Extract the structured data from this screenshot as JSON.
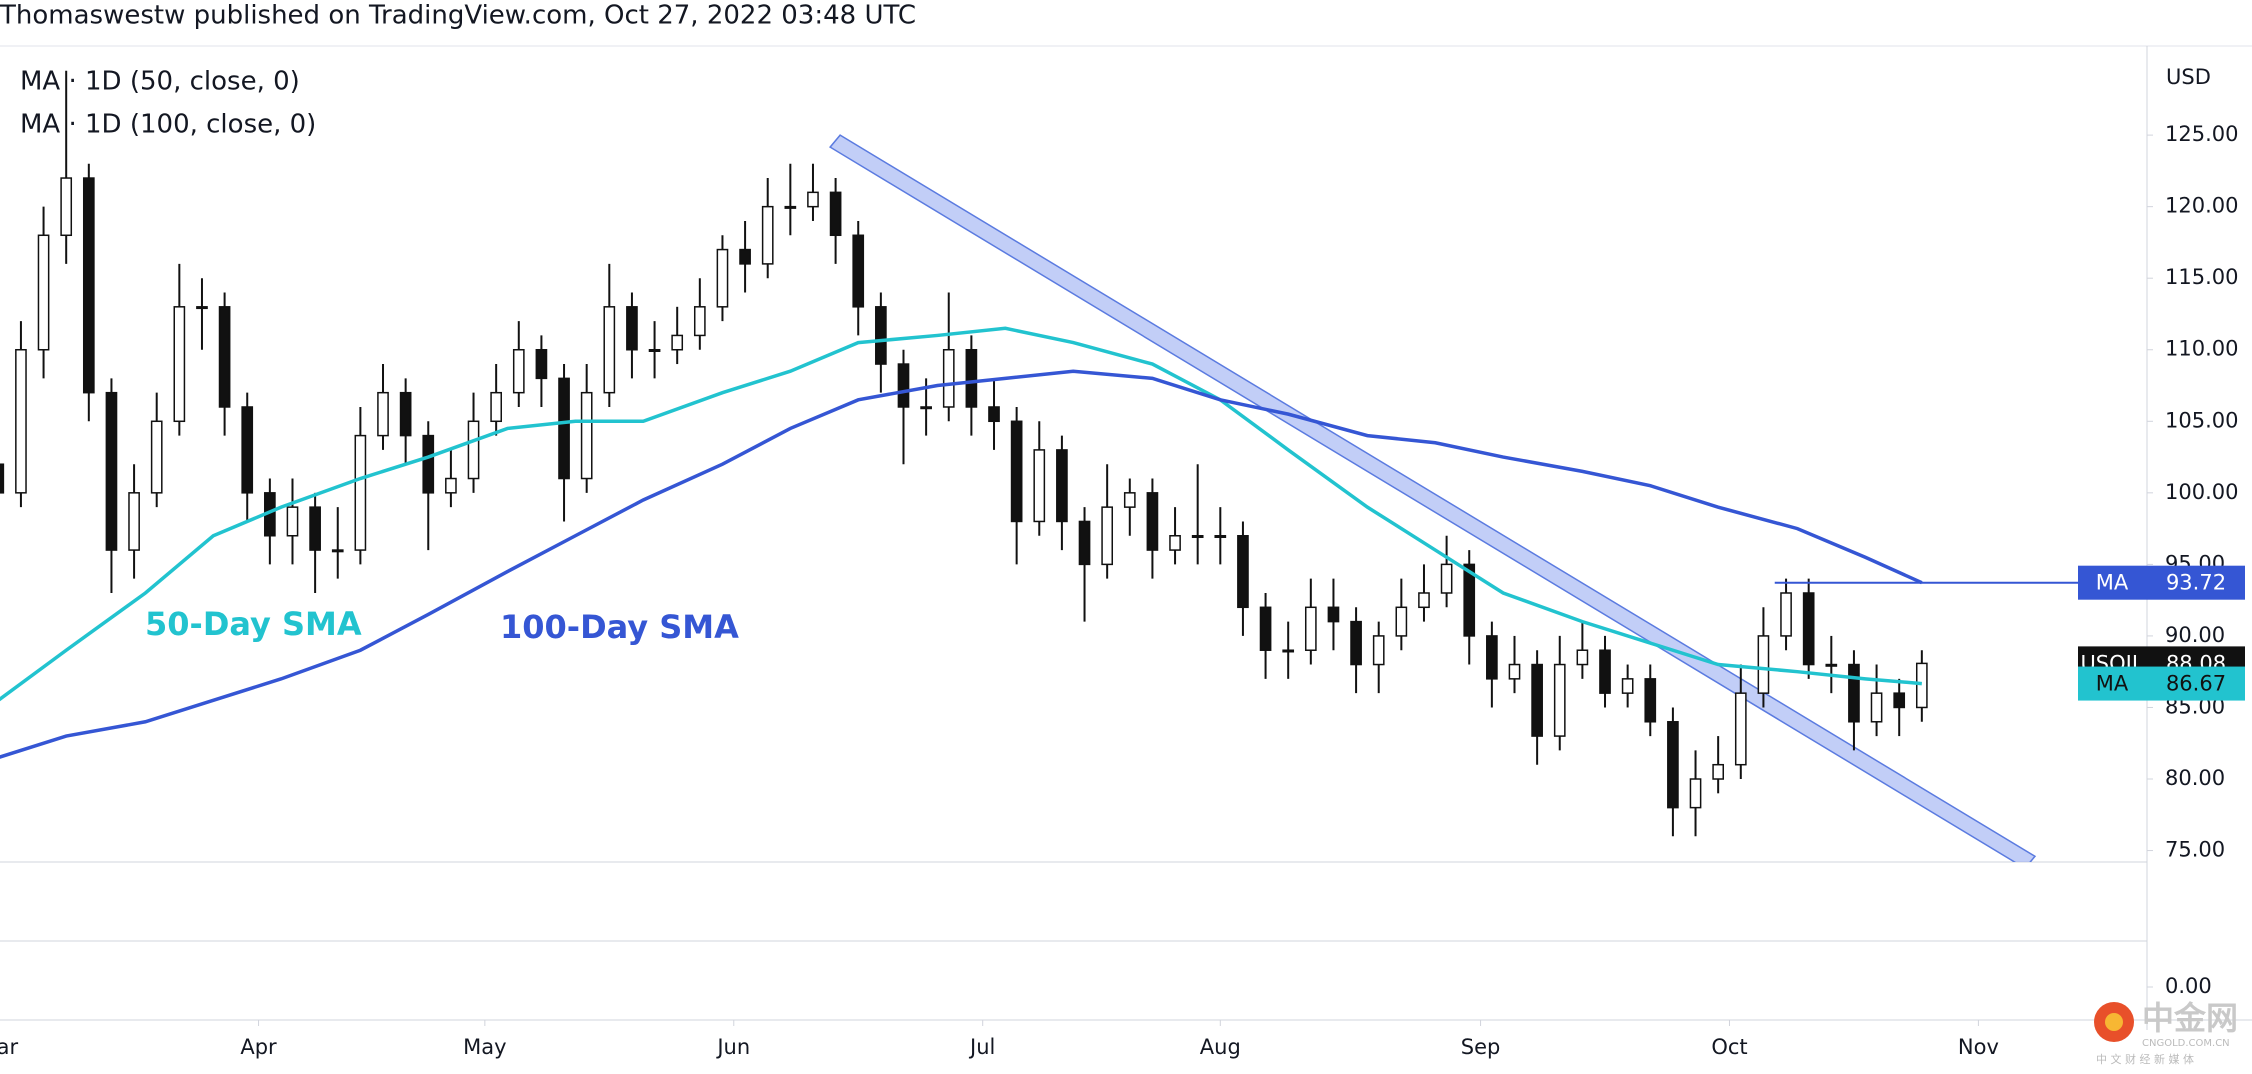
{
  "header": "Thomaswestw published on TradingView.com, Oct 27, 2022 03:48 UTC",
  "chart_data": {
    "type": "candlestick",
    "y_axis_label": "USD",
    "legend": [
      "MA · 1D (50, close, 0)",
      "MA · 1D (100, close, 0)"
    ],
    "xlim": [
      0.15,
      189.9
    ],
    "ylim": [
      74.2,
      129.9
    ],
    "xticks": [
      {
        "value": 0,
        "label": "Mar"
      },
      {
        "value": 23,
        "label": "Apr"
      },
      {
        "value": 43,
        "label": "May"
      },
      {
        "value": 65,
        "label": "Jun"
      },
      {
        "value": 87,
        "label": "Jul"
      },
      {
        "value": 108,
        "label": "Aug"
      },
      {
        "value": 131,
        "label": "Sep"
      },
      {
        "value": 153,
        "label": "Oct"
      },
      {
        "value": 175,
        "label": "Nov"
      }
    ],
    "yticks": [
      {
        "value": 75,
        "label": "75.00"
      },
      {
        "value": 80,
        "label": "80.00"
      },
      {
        "value": 85,
        "label": "85.00"
      },
      {
        "value": 90,
        "label": "90.00"
      },
      {
        "value": 95,
        "label": "95.00"
      },
      {
        "value": 100,
        "label": "100.00"
      },
      {
        "value": 105,
        "label": "105.00"
      },
      {
        "value": 110,
        "label": "110.00"
      },
      {
        "value": 115,
        "label": "115.00"
      },
      {
        "value": 120,
        "label": "120.00"
      },
      {
        "value": 125,
        "label": "125.00"
      }
    ],
    "lower_pane_yticks": [
      {
        "value": 0,
        "label": "0.00"
      }
    ],
    "candles": {
      "name": "USOIL",
      "up_color": "#ffffff",
      "down_color": "#111111",
      "x": [
        0,
        2,
        4,
        6,
        8,
        10,
        12,
        14,
        16,
        18,
        20,
        22,
        24,
        26,
        28,
        30,
        32,
        34,
        36,
        38,
        40,
        42,
        44,
        46,
        48,
        50,
        52,
        54,
        56,
        58,
        60,
        62,
        64,
        66,
        68,
        70,
        72,
        74,
        76,
        78,
        80,
        82,
        84,
        86,
        88,
        90,
        92,
        94,
        96,
        98,
        100,
        102,
        104,
        106,
        108,
        110,
        112,
        114,
        116,
        118,
        120,
        122,
        124,
        126,
        128,
        130,
        132,
        134,
        136,
        138,
        140,
        142,
        144,
        146,
        148,
        150,
        152,
        154,
        156,
        158,
        160,
        162,
        164,
        166,
        168,
        170
      ],
      "ohlc": [
        [
          102,
          104,
          97,
          100
        ],
        [
          100,
          112,
          99,
          110
        ],
        [
          110,
          120,
          108,
          118
        ],
        [
          118,
          129.5,
          116,
          122
        ],
        [
          122,
          123,
          105,
          107
        ],
        [
          107,
          108,
          93,
          96
        ],
        [
          96,
          102,
          94,
          100
        ],
        [
          100,
          107,
          99,
          105
        ],
        [
          105,
          116,
          104,
          113
        ],
        [
          113,
          115,
          110,
          113
        ],
        [
          113,
          114,
          104,
          106
        ],
        [
          106,
          107,
          98,
          100
        ],
        [
          100,
          101,
          95,
          97
        ],
        [
          97,
          101,
          95,
          99
        ],
        [
          99,
          100,
          93,
          96
        ],
        [
          96,
          99,
          94,
          96
        ],
        [
          96,
          106,
          95,
          104
        ],
        [
          104,
          109,
          103,
          107
        ],
        [
          107,
          108,
          102,
          104
        ],
        [
          104,
          105,
          96,
          100
        ],
        [
          100,
          103,
          99,
          101
        ],
        [
          101,
          107,
          100,
          105
        ],
        [
          105,
          109,
          104,
          107
        ],
        [
          107,
          112,
          106,
          110
        ],
        [
          110,
          111,
          106,
          108
        ],
        [
          108,
          109,
          98,
          101
        ],
        [
          101,
          109,
          100,
          107
        ],
        [
          107,
          116,
          106,
          113
        ],
        [
          113,
          114,
          108,
          110
        ],
        [
          110,
          112,
          108,
          110
        ],
        [
          110,
          113,
          109,
          111
        ],
        [
          111,
          115,
          110,
          113
        ],
        [
          113,
          118,
          112,
          117
        ],
        [
          117,
          119,
          114,
          116
        ],
        [
          116,
          122,
          115,
          120
        ],
        [
          120,
          123,
          118,
          120
        ],
        [
          120,
          123,
          119,
          121
        ],
        [
          121,
          122,
          116,
          118
        ],
        [
          118,
          119,
          111,
          113
        ],
        [
          113,
          114,
          107,
          109
        ],
        [
          109,
          110,
          102,
          106
        ],
        [
          106,
          108,
          104,
          106
        ],
        [
          106,
          114,
          105,
          110
        ],
        [
          110,
          111,
          104,
          106
        ],
        [
          106,
          108,
          103,
          105
        ],
        [
          105,
          106,
          95,
          98
        ],
        [
          98,
          105,
          97,
          103
        ],
        [
          103,
          104,
          96,
          98
        ],
        [
          98,
          99,
          91,
          95
        ],
        [
          95,
          102,
          94,
          99
        ],
        [
          99,
          101,
          97,
          100
        ],
        [
          100,
          101,
          94,
          96
        ],
        [
          96,
          99,
          95,
          97
        ],
        [
          97,
          102,
          95,
          97
        ],
        [
          97,
          99,
          95,
          97
        ],
        [
          97,
          98,
          90,
          92
        ],
        [
          92,
          93,
          87,
          89
        ],
        [
          89,
          91,
          87,
          89
        ],
        [
          89,
          94,
          88,
          92
        ],
        [
          92,
          94,
          89,
          91
        ],
        [
          91,
          92,
          86,
          88
        ],
        [
          88,
          91,
          86,
          90
        ],
        [
          90,
          94,
          89,
          92
        ],
        [
          92,
          95,
          91,
          93
        ],
        [
          93,
          97,
          92,
          95
        ],
        [
          95,
          96,
          88,
          90
        ],
        [
          90,
          91,
          85,
          87
        ],
        [
          87,
          90,
          86,
          88
        ],
        [
          88,
          89,
          81,
          83
        ],
        [
          83,
          90,
          82,
          88
        ],
        [
          88,
          91,
          87,
          89
        ],
        [
          89,
          90,
          85,
          86
        ],
        [
          86,
          88,
          85,
          87
        ],
        [
          87,
          88,
          83,
          84
        ],
        [
          84,
          85,
          76,
          78
        ],
        [
          78,
          82,
          76,
          80
        ],
        [
          80,
          83,
          79,
          81
        ],
        [
          81,
          88,
          80,
          86
        ],
        [
          86,
          92,
          85,
          90
        ],
        [
          90,
          94,
          89,
          93
        ],
        [
          93,
          94,
          87,
          88
        ],
        [
          88,
          90,
          86,
          88
        ],
        [
          88,
          89,
          82,
          84
        ],
        [
          84,
          88,
          83,
          86
        ],
        [
          86,
          87,
          83,
          85
        ],
        [
          85,
          89,
          84,
          88.08
        ]
      ]
    },
    "series": [
      {
        "name": "MA",
        "annotation": "50-Day SMA",
        "color": "#22c3cf",
        "x": [
          0,
          6,
          13,
          19,
          25,
          32,
          38,
          45,
          51,
          57,
          64,
          70,
          76,
          83,
          89,
          95,
          102,
          108,
          114,
          121,
          127,
          133,
          140,
          146,
          152,
          159,
          165,
          170
        ],
        "values": [
          85.5,
          89,
          93,
          97,
          99,
          101,
          102.5,
          104.5,
          105,
          105,
          107,
          108.5,
          110.5,
          111,
          111.5,
          110.5,
          109,
          106.5,
          103,
          99,
          96,
          93,
          91,
          89.5,
          88,
          87.5,
          87,
          86.67
        ]
      },
      {
        "name": "MA",
        "annotation": "100-Day SMA",
        "color": "#3556d4",
        "price_line_from": 157,
        "x": [
          0,
          6,
          13,
          19,
          25,
          32,
          38,
          45,
          51,
          57,
          64,
          70,
          76,
          83,
          89,
          95,
          102,
          108,
          114,
          121,
          127,
          133,
          140,
          146,
          152,
          159,
          165,
          170
        ],
        "values": [
          81.5,
          83,
          84,
          85.5,
          87,
          89,
          91.5,
          94.5,
          97,
          99.5,
          102,
          104.5,
          106.5,
          107.5,
          108,
          108.5,
          108,
          106.5,
          105.5,
          104,
          103.5,
          102.5,
          101.5,
          100.5,
          99,
          97.5,
          95.5,
          93.72
        ]
      }
    ],
    "trend_channel": {
      "x": [
        74.4,
        180
      ],
      "y": [
        125,
        74.6
      ],
      "color": "#8fa6f0"
    }
  },
  "watermark": {
    "brand": "中金网",
    "site": "CNGOLD.COM.CN",
    "tagline": "中 文 财 经 新 媒 体"
  }
}
